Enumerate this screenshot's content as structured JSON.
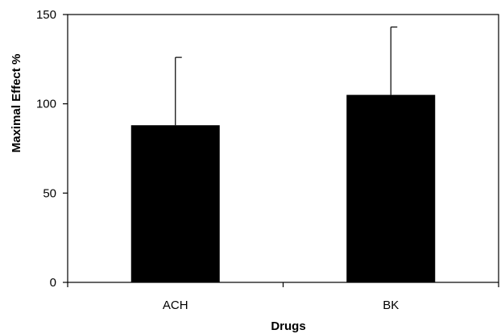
{
  "chart_data": {
    "type": "bar",
    "title": "",
    "xlabel": "Drugs",
    "ylabel": "Maximal Effect %",
    "categories": [
      "ACH",
      "BK"
    ],
    "series": [
      {
        "values": [
          88,
          105
        ],
        "error_upper": [
          126,
          143
        ]
      }
    ],
    "ylim": [
      0,
      150
    ],
    "yticks": [
      0,
      50,
      100,
      150
    ],
    "grid": false,
    "legend": "none",
    "bar_color": "#000000",
    "error_bar": "upper only"
  }
}
